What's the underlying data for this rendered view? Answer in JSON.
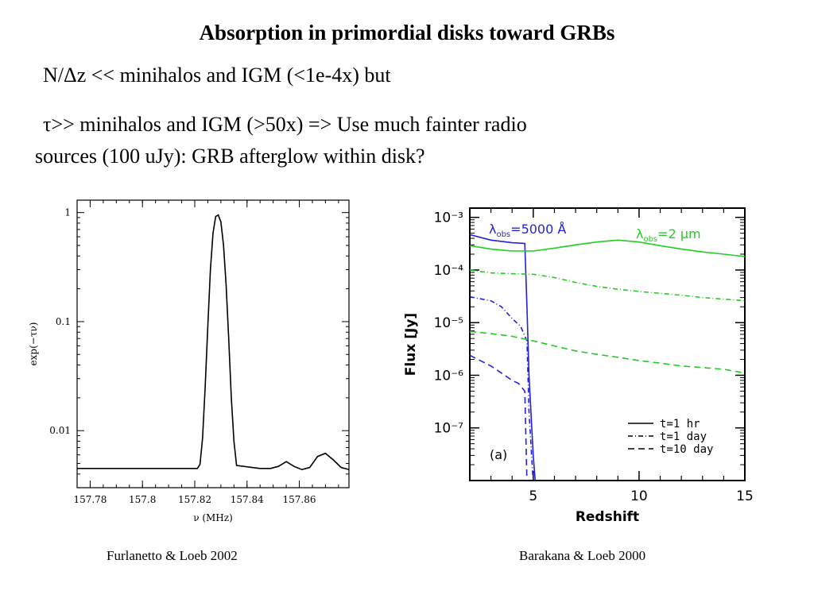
{
  "slide": {
    "title": "Absorption in primordial disks toward GRBs",
    "line1": "N/Δz << minihalos and IGM (<1e-4x)  but",
    "line2": "τ>> minihalos and IGM (>50x) => Use much fainter radio",
    "line3": "sources (100 uJy): GRB afterglow within disk?",
    "caption_left": "Furlanetto & Loeb 2002",
    "caption_right": "Barakana & Loeb 2000"
  },
  "chart_data": [
    {
      "type": "line",
      "xlabel": "ν (MHz)",
      "ylabel": "exp(−τν)",
      "yscale": "log",
      "xlim": [
        157.775,
        157.879
      ],
      "ylim": [
        0.003,
        1.3
      ],
      "xticks": [
        "157.78",
        "157.8",
        "157.82",
        "157.84",
        "157.86"
      ],
      "yticks": [
        "1",
        "0.1",
        "0.01"
      ],
      "line_color": "#000000",
      "series": [
        {
          "x": [
            157.775,
            157.79,
            157.81,
            157.821,
            157.822,
            157.823,
            157.824,
            157.825,
            157.826,
            157.827,
            157.828,
            157.829,
            157.83,
            157.831,
            157.832,
            157.833,
            157.834,
            157.835,
            157.836,
            157.845,
            157.849,
            157.852,
            157.855,
            157.858,
            157.861,
            157.864,
            157.867,
            157.87,
            157.873,
            157.876,
            157.879
          ],
          "y": [
            0.0045,
            0.0045,
            0.0045,
            0.0045,
            0.0049,
            0.0085,
            0.025,
            0.09,
            0.3,
            0.65,
            0.92,
            0.95,
            0.82,
            0.5,
            0.22,
            0.07,
            0.02,
            0.008,
            0.0048,
            0.0045,
            0.0045,
            0.0047,
            0.0052,
            0.0047,
            0.0044,
            0.0046,
            0.0058,
            0.0062,
            0.0054,
            0.0046,
            0.0044
          ]
        }
      ]
    },
    {
      "type": "line",
      "xlabel": "Redshift",
      "ylabel": "Flux [Jy]",
      "yscale": "log",
      "xlim": [
        2,
        15
      ],
      "ylim": [
        1e-08,
        0.0015
      ],
      "xticks": [
        "5",
        "10",
        "15"
      ],
      "yticks": [
        "10⁻³",
        "10⁻⁴",
        "10⁻⁵",
        "10⁻⁶",
        "10⁻⁷"
      ],
      "panel_label": "(a)",
      "annotations": [
        {
          "text": "λ",
          "sub": "obs",
          "rest": "=5000 Å",
          "color": "#2222dd"
        },
        {
          "text": "λ",
          "sub": "obs",
          "rest": "=2  μm",
          "color": "#22cc22"
        }
      ],
      "legend": [
        {
          "label": "t=1 hr",
          "style": "solid"
        },
        {
          "label": "t=1 day",
          "style": "dashdot"
        },
        {
          "label": "t=10 day",
          "style": "dashed"
        }
      ],
      "legend_position": "lower-right",
      "series": [
        {
          "group": "blue",
          "style": "solid",
          "color": "#2222dd",
          "x": [
            2,
            3,
            4,
            4.6,
            4.7,
            4.8,
            5.0,
            5.1
          ],
          "y": [
            0.00047,
            0.00037,
            0.00033,
            0.00032,
            2e-05,
            1e-06,
            3e-08,
            9e-09
          ]
        },
        {
          "group": "blue",
          "style": "dashdot",
          "color": "#2222dd",
          "x": [
            2,
            3,
            3.5,
            4,
            4.4,
            4.7,
            4.8,
            5.0
          ],
          "y": [
            3.1e-05,
            2.6e-05,
            2e-05,
            1.2e-05,
            8.5e-06,
            4.5e-06,
            2e-07,
            9e-09
          ]
        },
        {
          "group": "blue",
          "style": "dashed",
          "color": "#2222dd",
          "x": [
            2,
            3,
            3.5,
            4,
            4.3,
            4.6,
            4.7
          ],
          "y": [
            2.4e-06,
            1.5e-06,
            1.1e-06,
            8e-07,
            7e-07,
            5e-07,
            9e-09
          ]
        },
        {
          "group": "green",
          "style": "solid",
          "color": "#22cc22",
          "x": [
            2,
            3,
            4,
            5,
            6,
            7,
            8,
            9,
            10,
            11,
            12,
            13,
            14,
            15
          ],
          "y": [
            0.00029,
            0.00025,
            0.00023,
            0.00023,
            0.00026,
            0.0003,
            0.00034,
            0.00037,
            0.00034,
            0.00029,
            0.00025,
            0.00022,
            0.0002,
            0.00018
          ]
        },
        {
          "group": "green",
          "style": "dashdot",
          "color": "#22cc22",
          "x": [
            2,
            3,
            4,
            5,
            6,
            7,
            8,
            9,
            10,
            11,
            12,
            13,
            14,
            15
          ],
          "y": [
            0.0001,
            8.8e-05,
            8.5e-05,
            8.3e-05,
            7.2e-05,
            5.8e-05,
            4.9e-05,
            4.3e-05,
            3.9e-05,
            3.6e-05,
            3.3e-05,
            3e-05,
            2.8e-05,
            2.6e-05
          ]
        },
        {
          "group": "green",
          "style": "dashed",
          "color": "#22cc22",
          "x": [
            2,
            3,
            4,
            5,
            6,
            7,
            8,
            9,
            10,
            11,
            12,
            13,
            14,
            15
          ],
          "y": [
            6.8e-06,
            6.2e-06,
            5.5e-06,
            4.5e-06,
            3.6e-06,
            2.9e-06,
            2.5e-06,
            2.2e-06,
            1.9e-06,
            1.7e-06,
            1.5e-06,
            1.4e-06,
            1.3e-06,
            1.1e-06
          ]
        }
      ]
    }
  ]
}
